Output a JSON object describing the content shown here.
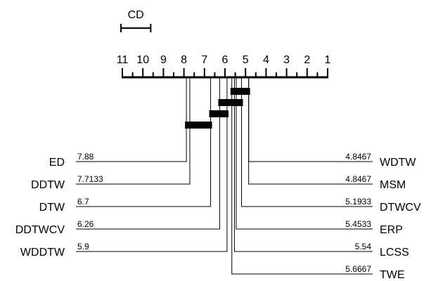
{
  "diagram": {
    "cd_label": "CD",
    "cd_width_ranks": 1.45,
    "axis": {
      "min": 1,
      "max": 11,
      "ticks": [
        "11",
        "10",
        "9",
        "8",
        "7",
        "6",
        "5",
        "4",
        "3",
        "2",
        "1"
      ]
    },
    "left_methods": [
      {
        "name": "ED",
        "rank_label": "7.88",
        "rank": 7.88
      },
      {
        "name": "DDTW",
        "rank_label": "7.7133",
        "rank": 7.7133
      },
      {
        "name": "DTW",
        "rank_label": "6.7",
        "rank": 6.7
      },
      {
        "name": "DDTWCV",
        "rank_label": "6.26",
        "rank": 6.26
      },
      {
        "name": "WDDTW",
        "rank_label": "5.9",
        "rank": 5.9
      }
    ],
    "right_methods": [
      {
        "name": "WDTW",
        "rank_label": "4.8467",
        "rank": 4.8467
      },
      {
        "name": "MSM",
        "rank_label": "4.8467",
        "rank": 4.8467
      },
      {
        "name": "DTWCV",
        "rank_label": "5.1933",
        "rank": 5.1933
      },
      {
        "name": "ERP",
        "rank_label": "5.4533",
        "rank": 5.4533
      },
      {
        "name": "LCSS",
        "rank_label": "5.54",
        "rank": 5.54
      },
      {
        "name": "TWE",
        "rank_label": "5.6667",
        "rank": 5.6667
      }
    ],
    "cliques": [
      {
        "from": 5.6667,
        "to": 4.8467
      },
      {
        "from": 6.26,
        "to": 5.1933
      },
      {
        "from": 6.7,
        "to": 5.9
      },
      {
        "from": 7.88,
        "to": 6.7
      }
    ]
  }
}
